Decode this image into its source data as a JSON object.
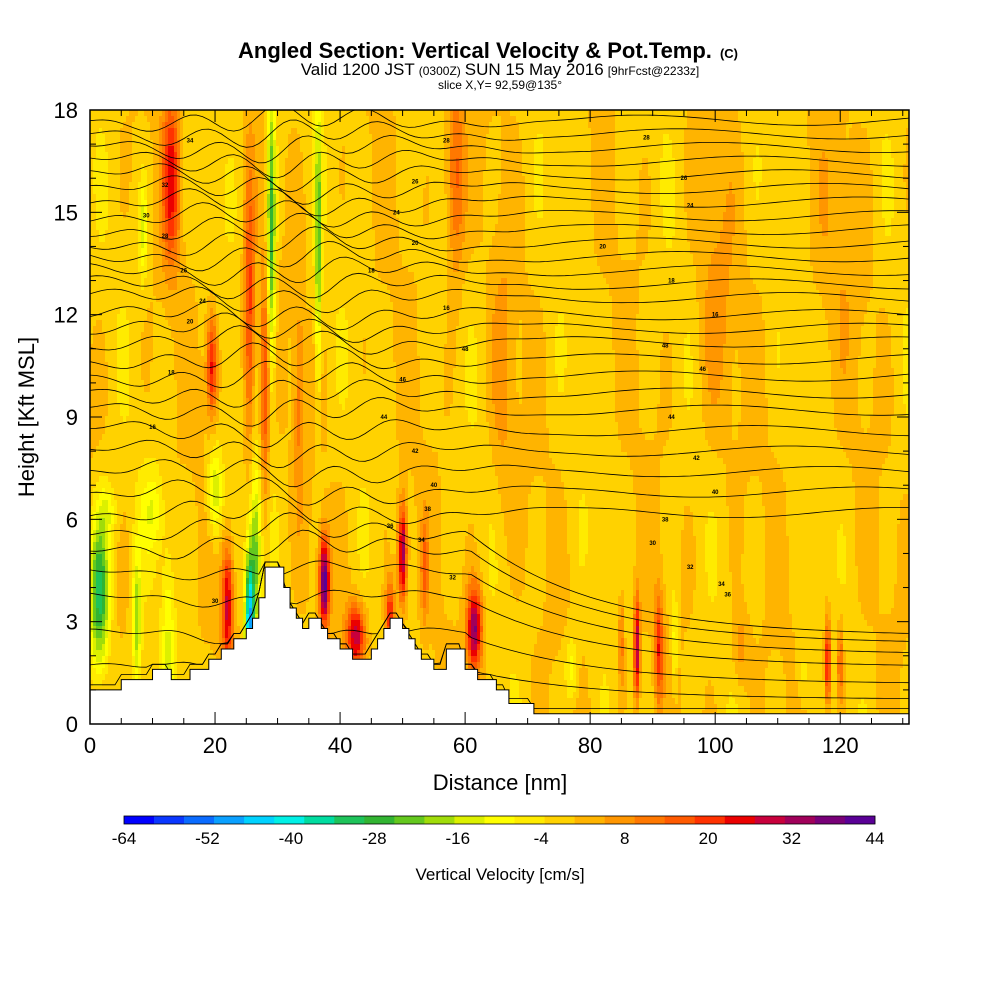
{
  "title": {
    "main": "Angled Section: Vertical Velocity & Pot.Temp.",
    "main_suffix": "(C)",
    "valid_prefix": "Valid 1200 JST",
    "valid_z": "(0300Z)",
    "valid_date": "SUN 15 May 2016",
    "forecast": "[9hrFcst@2233z]",
    "slice": "slice X,Y= 92,59@135°"
  },
  "chart_data": {
    "type": "heatmap",
    "xlabel": "Distance [nm]",
    "ylabel": "Height [Kft MSL]",
    "xlim": [
      0,
      131
    ],
    "ylim": [
      0,
      18
    ],
    "xticks": [
      "0",
      "20",
      "40",
      "60",
      "80",
      "100",
      "120"
    ],
    "xtick_values": [
      0,
      20,
      40,
      60,
      80,
      100,
      120
    ],
    "yticks": [
      "0",
      "3",
      "6",
      "9",
      "12",
      "15",
      "18"
    ],
    "ytick_values": [
      0,
      3,
      6,
      9,
      12,
      15,
      18
    ],
    "grid": false,
    "colorbar": {
      "label": "Vertical Velocity [cm/s]",
      "min": -64,
      "max": 44,
      "step": 4,
      "tick_labels": [
        "-64",
        "-52",
        "-40",
        "-28",
        "-16",
        "-4",
        "8",
        "20",
        "32",
        "44"
      ],
      "colors": [
        "#0000ff",
        "#0a37ff",
        "#0a6bff",
        "#0aa0ff",
        "#00d2ff",
        "#00f0e6",
        "#00dca0",
        "#1ec35a",
        "#32b432",
        "#64c81e",
        "#a0dc0a",
        "#dcf000",
        "#ffff00",
        "#ffeb00",
        "#ffd200",
        "#ffb400",
        "#ff9600",
        "#ff7800",
        "#ff5a00",
        "#ff3200",
        "#eb0000",
        "#c8003c",
        "#a0005a",
        "#780078",
        "#5a0096"
      ]
    },
    "terrain": [
      [
        0,
        1
      ],
      [
        5,
        1
      ],
      [
        5,
        1.3
      ],
      [
        10,
        1.3
      ],
      [
        10,
        1.6
      ],
      [
        13,
        1.6
      ],
      [
        13,
        1.3
      ],
      [
        16,
        1.3
      ],
      [
        16,
        1.6
      ],
      [
        19,
        1.6
      ],
      [
        19,
        1.9
      ],
      [
        21,
        1.9
      ],
      [
        21,
        2.2
      ],
      [
        23,
        2.2
      ],
      [
        23,
        2.5
      ],
      [
        25,
        2.5
      ],
      [
        25,
        2.8
      ],
      [
        26,
        2.8
      ],
      [
        26,
        3.1
      ],
      [
        27,
        3.1
      ],
      [
        27,
        3.7
      ],
      [
        28,
        3.7
      ],
      [
        28,
        4.6
      ],
      [
        31,
        4.6
      ],
      [
        31,
        4
      ],
      [
        32,
        4
      ],
      [
        32,
        3.4
      ],
      [
        33,
        3.4
      ],
      [
        33,
        3.1
      ],
      [
        34,
        3.1
      ],
      [
        34,
        2.8
      ],
      [
        35,
        2.8
      ],
      [
        35,
        3.1
      ],
      [
        37,
        3.1
      ],
      [
        37,
        2.8
      ],
      [
        38,
        2.8
      ],
      [
        38,
        2.5
      ],
      [
        40,
        2.5
      ],
      [
        40,
        2.2
      ],
      [
        42,
        2.2
      ],
      [
        42,
        1.9
      ],
      [
        45,
        1.9
      ],
      [
        45,
        2.2
      ],
      [
        46,
        2.2
      ],
      [
        46,
        2.5
      ],
      [
        47,
        2.5
      ],
      [
        47,
        2.8
      ],
      [
        48,
        2.8
      ],
      [
        48,
        3.1
      ],
      [
        50,
        3.1
      ],
      [
        50,
        2.8
      ],
      [
        51,
        2.8
      ],
      [
        51,
        2.5
      ],
      [
        52,
        2.5
      ],
      [
        52,
        2.2
      ],
      [
        53,
        2.2
      ],
      [
        53,
        1.9
      ],
      [
        55,
        1.9
      ],
      [
        55,
        1.6
      ],
      [
        57,
        1.6
      ],
      [
        57,
        2.2
      ],
      [
        60,
        2.2
      ],
      [
        60,
        1.6
      ],
      [
        62,
        1.6
      ],
      [
        62,
        1.3
      ],
      [
        65,
        1.3
      ],
      [
        65,
        1
      ],
      [
        67,
        1
      ],
      [
        67,
        0.6
      ],
      [
        71,
        0.6
      ],
      [
        71,
        0.3
      ],
      [
        131,
        0.3
      ]
    ],
    "theta_contours": {
      "base_heights": [
        0.6,
        1.6,
        2.6,
        3.7,
        4.5,
        5.2,
        5.7,
        6.2,
        6.8,
        7.4,
        8.0,
        8.6,
        9.2,
        9.7,
        10.2,
        10.7,
        11.2,
        11.6,
        12.0,
        12.5,
        12.9,
        13.3,
        13.7,
        14.1,
        14.5,
        14.9,
        15.3,
        15.7,
        16.1,
        16.5,
        16.9,
        17.3,
        17.7
      ],
      "labels": [
        "16",
        "18",
        "20",
        "24",
        "26",
        "28",
        "30",
        "32",
        "34",
        "36",
        "38",
        "40",
        "42",
        "44",
        "46",
        "48"
      ]
    }
  }
}
